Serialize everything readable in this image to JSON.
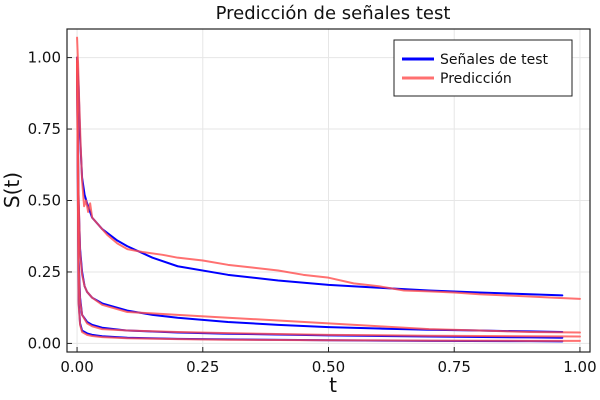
{
  "chart_data": {
    "type": "line",
    "title": "Predicción de señales test",
    "xlabel": "t",
    "ylabel": "S(t)",
    "xlim": [
      -0.02,
      1.02
    ],
    "ylim": [
      -0.03,
      1.1
    ],
    "xticks": [
      0.0,
      0.25,
      0.5,
      0.75,
      1.0
    ],
    "xtick_labels": [
      "0.00",
      "0.25",
      "0.50",
      "0.75",
      "1.00"
    ],
    "yticks": [
      0.0,
      0.25,
      0.5,
      0.75,
      1.0
    ],
    "ytick_labels": [
      "0.00",
      "0.25",
      "0.50",
      "0.75",
      "1.00"
    ],
    "grid": true,
    "legend_position": "top-right",
    "legend": [
      {
        "label": "Señales de test",
        "color": "#0000ff"
      },
      {
        "label": "Predicción",
        "color": "#ff4d4d"
      }
    ],
    "series": [
      {
        "group": "test",
        "color": "#0000ff",
        "x": [
          0.0,
          0.003,
          0.006,
          0.01,
          0.015,
          0.02,
          0.03,
          0.05,
          0.08,
          0.1,
          0.15,
          0.2,
          0.3,
          0.4,
          0.5,
          0.6,
          0.7,
          0.8,
          0.9,
          0.965
        ],
        "y": [
          1.0,
          0.9,
          0.72,
          0.58,
          0.52,
          0.49,
          0.44,
          0.4,
          0.36,
          0.34,
          0.3,
          0.27,
          0.24,
          0.22,
          0.205,
          0.195,
          0.185,
          0.178,
          0.172,
          0.168
        ]
      },
      {
        "group": "test",
        "color": "#0000ff",
        "x": [
          0.0,
          0.003,
          0.006,
          0.01,
          0.015,
          0.02,
          0.03,
          0.05,
          0.1,
          0.15,
          0.2,
          0.3,
          0.4,
          0.5,
          0.6,
          0.7,
          0.8,
          0.9,
          0.965
        ],
        "y": [
          1.0,
          0.5,
          0.33,
          0.25,
          0.2,
          0.18,
          0.16,
          0.14,
          0.115,
          0.1,
          0.09,
          0.075,
          0.065,
          0.057,
          0.052,
          0.048,
          0.045,
          0.042,
          0.04
        ]
      },
      {
        "group": "test",
        "color": "#0000ff",
        "x": [
          0.0,
          0.003,
          0.006,
          0.01,
          0.02,
          0.03,
          0.05,
          0.1,
          0.2,
          0.3,
          0.5,
          0.7,
          0.9,
          0.965
        ],
        "y": [
          0.99,
          0.3,
          0.16,
          0.1,
          0.075,
          0.065,
          0.055,
          0.045,
          0.038,
          0.034,
          0.028,
          0.024,
          0.021,
          0.02
        ]
      },
      {
        "group": "test",
        "color": "#0000ff",
        "x": [
          0.0,
          0.003,
          0.006,
          0.01,
          0.02,
          0.03,
          0.05,
          0.1,
          0.2,
          0.3,
          0.5,
          0.7,
          0.9,
          0.965
        ],
        "y": [
          0.98,
          0.15,
          0.07,
          0.045,
          0.035,
          0.03,
          0.025,
          0.02,
          0.016,
          0.014,
          0.011,
          0.009,
          0.008,
          0.007
        ]
      },
      {
        "group": "pred",
        "color": "#ff4d4d",
        "x": [
          0.0,
          0.002,
          0.004,
          0.007,
          0.01,
          0.014,
          0.018,
          0.022,
          0.026,
          0.03,
          0.035,
          0.045,
          0.06,
          0.08,
          0.1,
          0.13,
          0.17,
          0.2,
          0.25,
          0.3,
          0.35,
          0.4,
          0.45,
          0.5,
          0.55,
          0.6,
          0.65,
          0.7,
          0.75,
          0.8,
          0.85,
          0.9,
          0.95,
          1.0
        ],
        "y": [
          1.07,
          0.98,
          0.86,
          0.7,
          0.57,
          0.48,
          0.5,
          0.46,
          0.49,
          0.44,
          0.43,
          0.41,
          0.38,
          0.35,
          0.33,
          0.32,
          0.31,
          0.3,
          0.29,
          0.275,
          0.265,
          0.255,
          0.24,
          0.23,
          0.21,
          0.2,
          0.185,
          0.182,
          0.178,
          0.172,
          0.168,
          0.164,
          0.16,
          0.156
        ]
      },
      {
        "group": "pred",
        "color": "#ff4d4d",
        "x": [
          0.0,
          0.003,
          0.006,
          0.01,
          0.015,
          0.02,
          0.03,
          0.05,
          0.1,
          0.15,
          0.2,
          0.3,
          0.4,
          0.5,
          0.6,
          0.7,
          0.8,
          0.9,
          1.0
        ],
        "y": [
          1.0,
          0.52,
          0.32,
          0.24,
          0.2,
          0.18,
          0.16,
          0.135,
          0.11,
          0.105,
          0.1,
          0.09,
          0.08,
          0.07,
          0.06,
          0.05,
          0.045,
          0.04,
          0.038
        ]
      },
      {
        "group": "pred",
        "color": "#ff4d4d",
        "x": [
          0.0,
          0.003,
          0.006,
          0.01,
          0.02,
          0.03,
          0.05,
          0.1,
          0.2,
          0.3,
          0.5,
          0.7,
          0.9,
          1.0
        ],
        "y": [
          0.99,
          0.28,
          0.15,
          0.1,
          0.07,
          0.06,
          0.05,
          0.045,
          0.04,
          0.036,
          0.03,
          0.027,
          0.025,
          0.024
        ]
      },
      {
        "group": "pred",
        "color": "#ff4d4d",
        "x": [
          0.0,
          0.003,
          0.006,
          0.01,
          0.02,
          0.03,
          0.05,
          0.1,
          0.2,
          0.3,
          0.5,
          0.7,
          0.9,
          1.0
        ],
        "y": [
          0.98,
          0.14,
          0.065,
          0.04,
          0.03,
          0.026,
          0.022,
          0.018,
          0.015,
          0.013,
          0.011,
          0.01,
          0.009,
          0.009
        ]
      }
    ]
  }
}
